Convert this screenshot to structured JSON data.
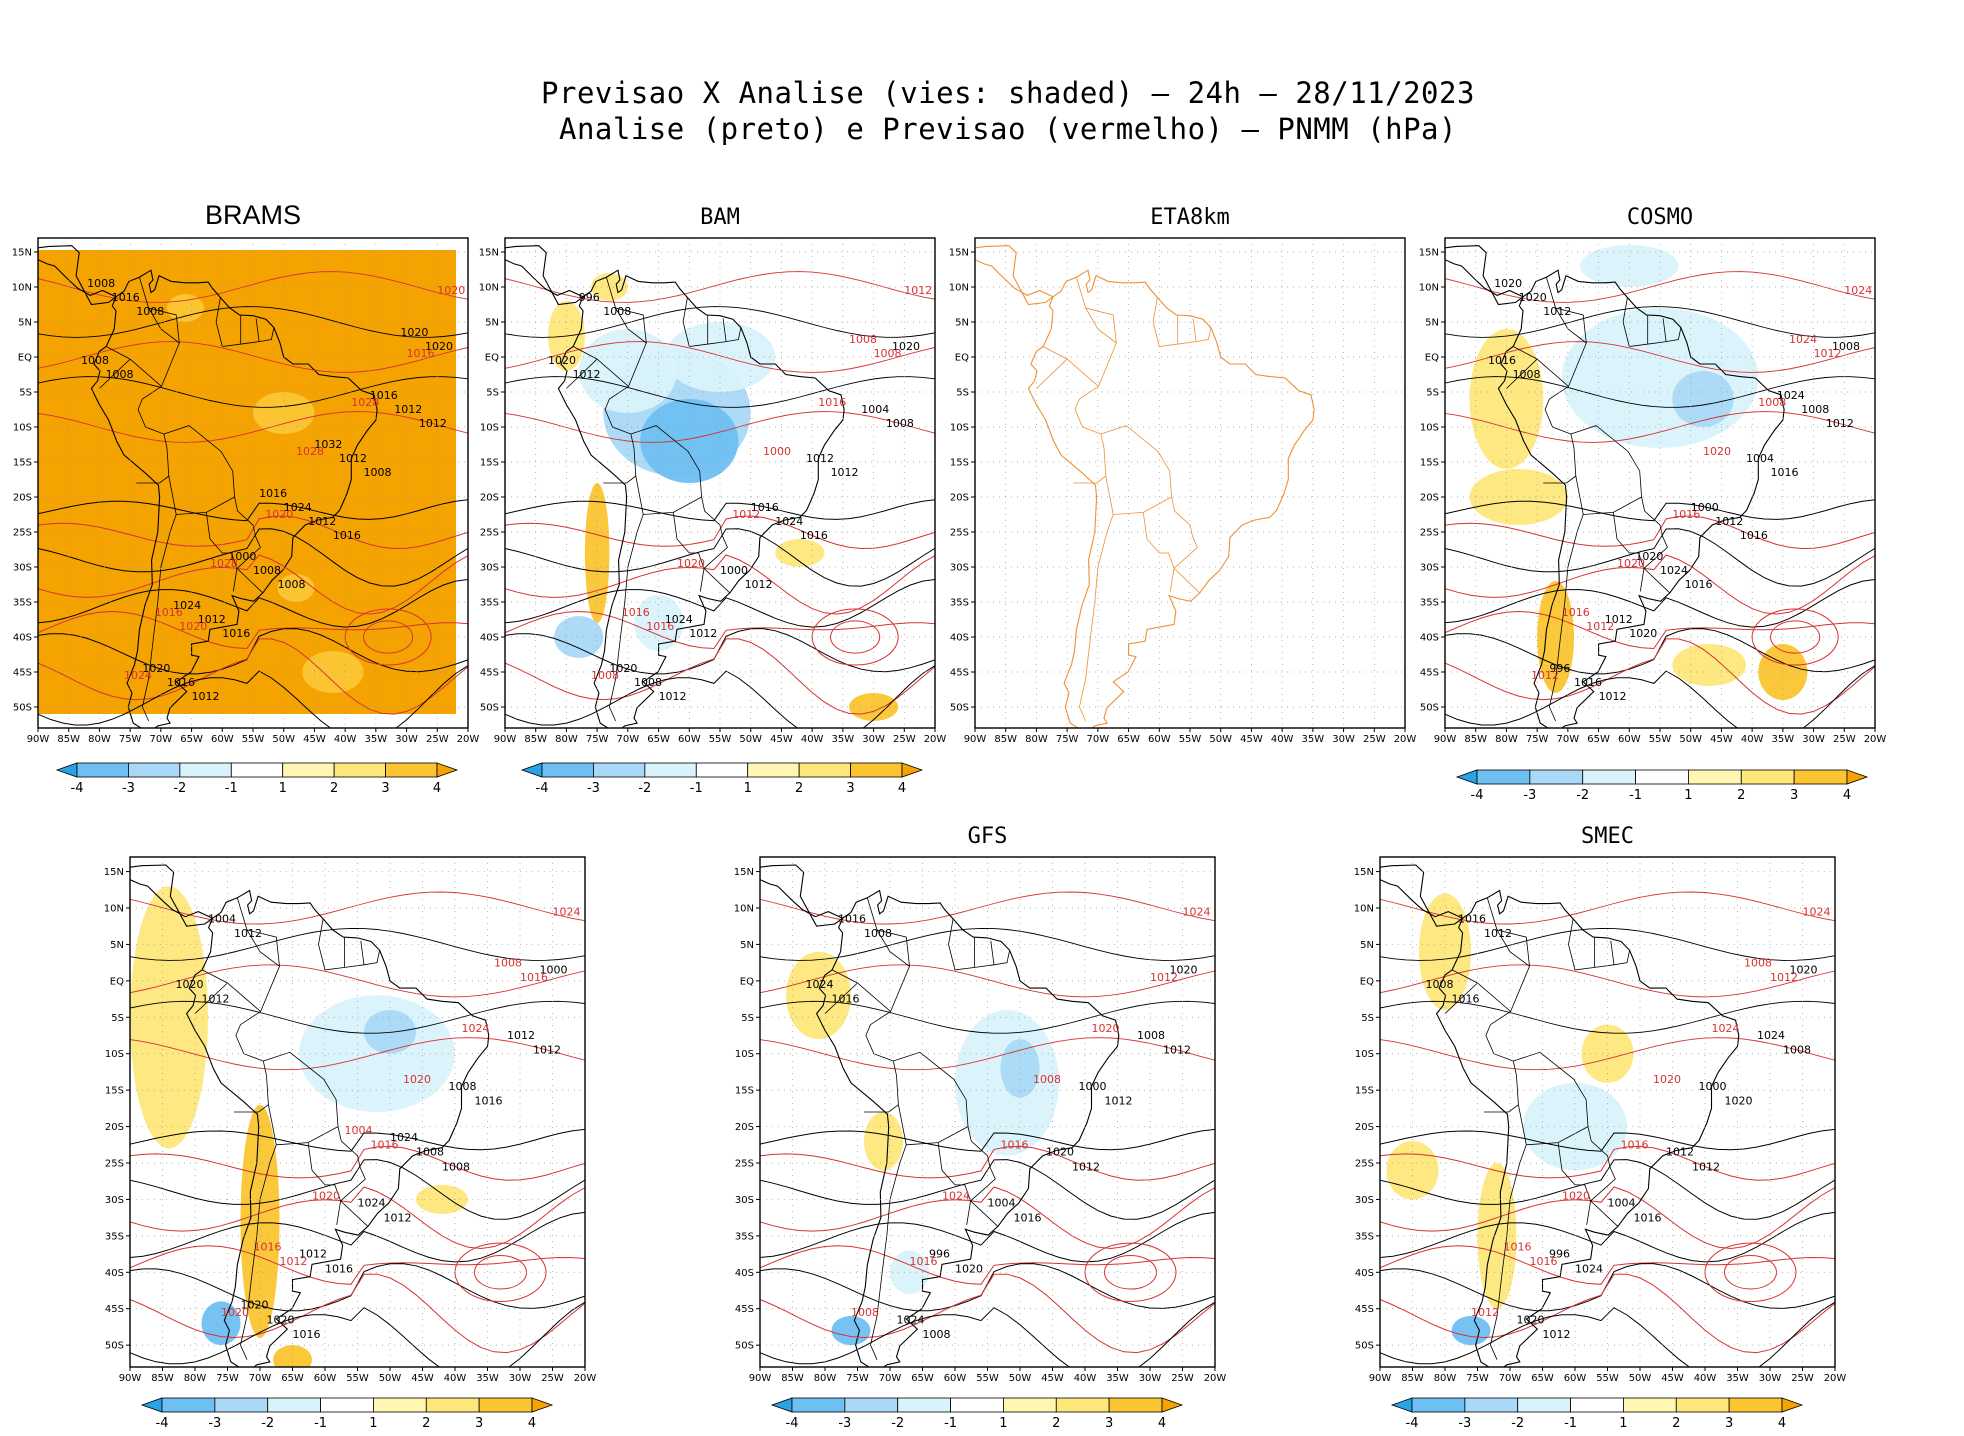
{
  "header": {
    "line1": "Previsao X Analise (vies: shaded) – 24h – 28/11/2023",
    "line2": "Analise (preto) e Previsao (vermelho) – PNMM (hPa)"
  },
  "axes": {
    "x_ticks": [
      "90W",
      "85W",
      "80W",
      "75W",
      "70W",
      "65W",
      "60W",
      "55W",
      "50W",
      "45W",
      "40W",
      "35W",
      "30W",
      "25W",
      "20W"
    ],
    "y_ticks": [
      "15N",
      "10N",
      "5N",
      "EQ",
      "5S",
      "10S",
      "15S",
      "20S",
      "25S",
      "30S",
      "35S",
      "40S",
      "45S",
      "50S"
    ]
  },
  "colorbar": {
    "labels": [
      "-4",
      "-3",
      "-2",
      "-1",
      "1",
      "2",
      "3",
      "4"
    ],
    "colors": [
      "#29a3e6",
      "#6fc0f2",
      "#a9d9f7",
      "#d9f3fb",
      "#ffffff",
      "#fff6b3",
      "#fde77a",
      "#fbc532",
      "#f5a300"
    ]
  },
  "colors": {
    "analysis_contour": "#000000",
    "forecast_contour": "#d73232",
    "coastline": "#000000",
    "eta_coast": "#ef8f35",
    "grid": "#9a9a9a",
    "brams_fill": "#f5a300"
  },
  "panels": [
    {
      "name": "BRAMS",
      "contour_labels_black": [
        "1008",
        "1016",
        "1012",
        "1012",
        "1008",
        "1008",
        "1008",
        "1016",
        "1008",
        "1012",
        "1016",
        "1012",
        "1008",
        "1016",
        "1012",
        "1012",
        "1020",
        "1024",
        "1020",
        "1016",
        "1000",
        "1008",
        "1032",
        "1024",
        "1020",
        "1016"
      ],
      "contour_labels_red": [
        "1020",
        "1016",
        "1020",
        "1024",
        "1028",
        "1028",
        "1020",
        "1028",
        "1016"
      ]
    },
    {
      "name": "BAM",
      "contour_labels_black": [
        "1012",
        "1016",
        "1012",
        "1008",
        "1012",
        "1008",
        "1012",
        "1012",
        "1020",
        "1024",
        "1008",
        "1004",
        "1000",
        "996",
        "1012",
        "1024",
        "1020",
        "1016",
        "1020"
      ],
      "contour_labels_red": [
        "1016",
        "1008",
        "1012",
        "1008",
        "1016",
        "1020",
        "1012",
        "1000",
        "1016",
        "1008"
      ]
    },
    {
      "name": "ETA8km",
      "contour_labels_black": [],
      "contour_labels_red": []
    },
    {
      "name": "COSMO",
      "contour_labels_black": [
        "1008",
        "1016",
        "1012",
        "1012",
        "1016",
        "1012",
        "1016",
        "1020",
        "1016",
        "1012",
        "1016",
        "1008",
        "1024",
        "1020",
        "1004",
        "1012",
        "1008",
        "1000",
        "996",
        "1024",
        "1020",
        "1020"
      ],
      "contour_labels_red": [
        "1012",
        "1012",
        "1016",
        "1012",
        "1008",
        "1020",
        "1024",
        "1020",
        "1016",
        "1024"
      ]
    },
    {
      "name": "",
      "contour_labels_black": [
        "1012",
        "1008",
        "1016",
        "1012",
        "1012",
        "1012",
        "1016",
        "1016",
        "1020",
        "1008",
        "1020",
        "1012",
        "1024",
        "1004",
        "1008",
        "1012",
        "1000",
        "1024",
        "1020"
      ],
      "contour_labels_red": [
        "1012",
        "1016",
        "1016",
        "1020",
        "1024",
        "1020",
        "1024",
        "1020",
        "1016",
        "1008",
        "1004"
      ]
    },
    {
      "name": "GFS",
      "contour_labels_black": [
        "1016",
        "1012",
        "1008",
        "1012",
        "1016",
        "1008",
        "1012",
        "1020",
        "1024",
        "1020",
        "1024",
        "1008",
        "1004",
        "1016",
        "1000",
        "996",
        "1020"
      ],
      "contour_labels_red": [
        "1016",
        "1012",
        "1016",
        "1008",
        "1020",
        "1024",
        "1024",
        "1008"
      ]
    },
    {
      "name": "SMEC",
      "contour_labels_black": [
        "1016",
        "1012",
        "1012",
        "1008",
        "1016",
        "1012",
        "1020",
        "1024",
        "1008",
        "1012",
        "1020",
        "1024",
        "1004",
        "1016",
        "1000",
        "996",
        "1020"
      ],
      "contour_labels_red": [
        "1016",
        "1012",
        "1016",
        "1012",
        "1024",
        "1020",
        "1024",
        "1020",
        "1016",
        "1008"
      ]
    }
  ]
}
